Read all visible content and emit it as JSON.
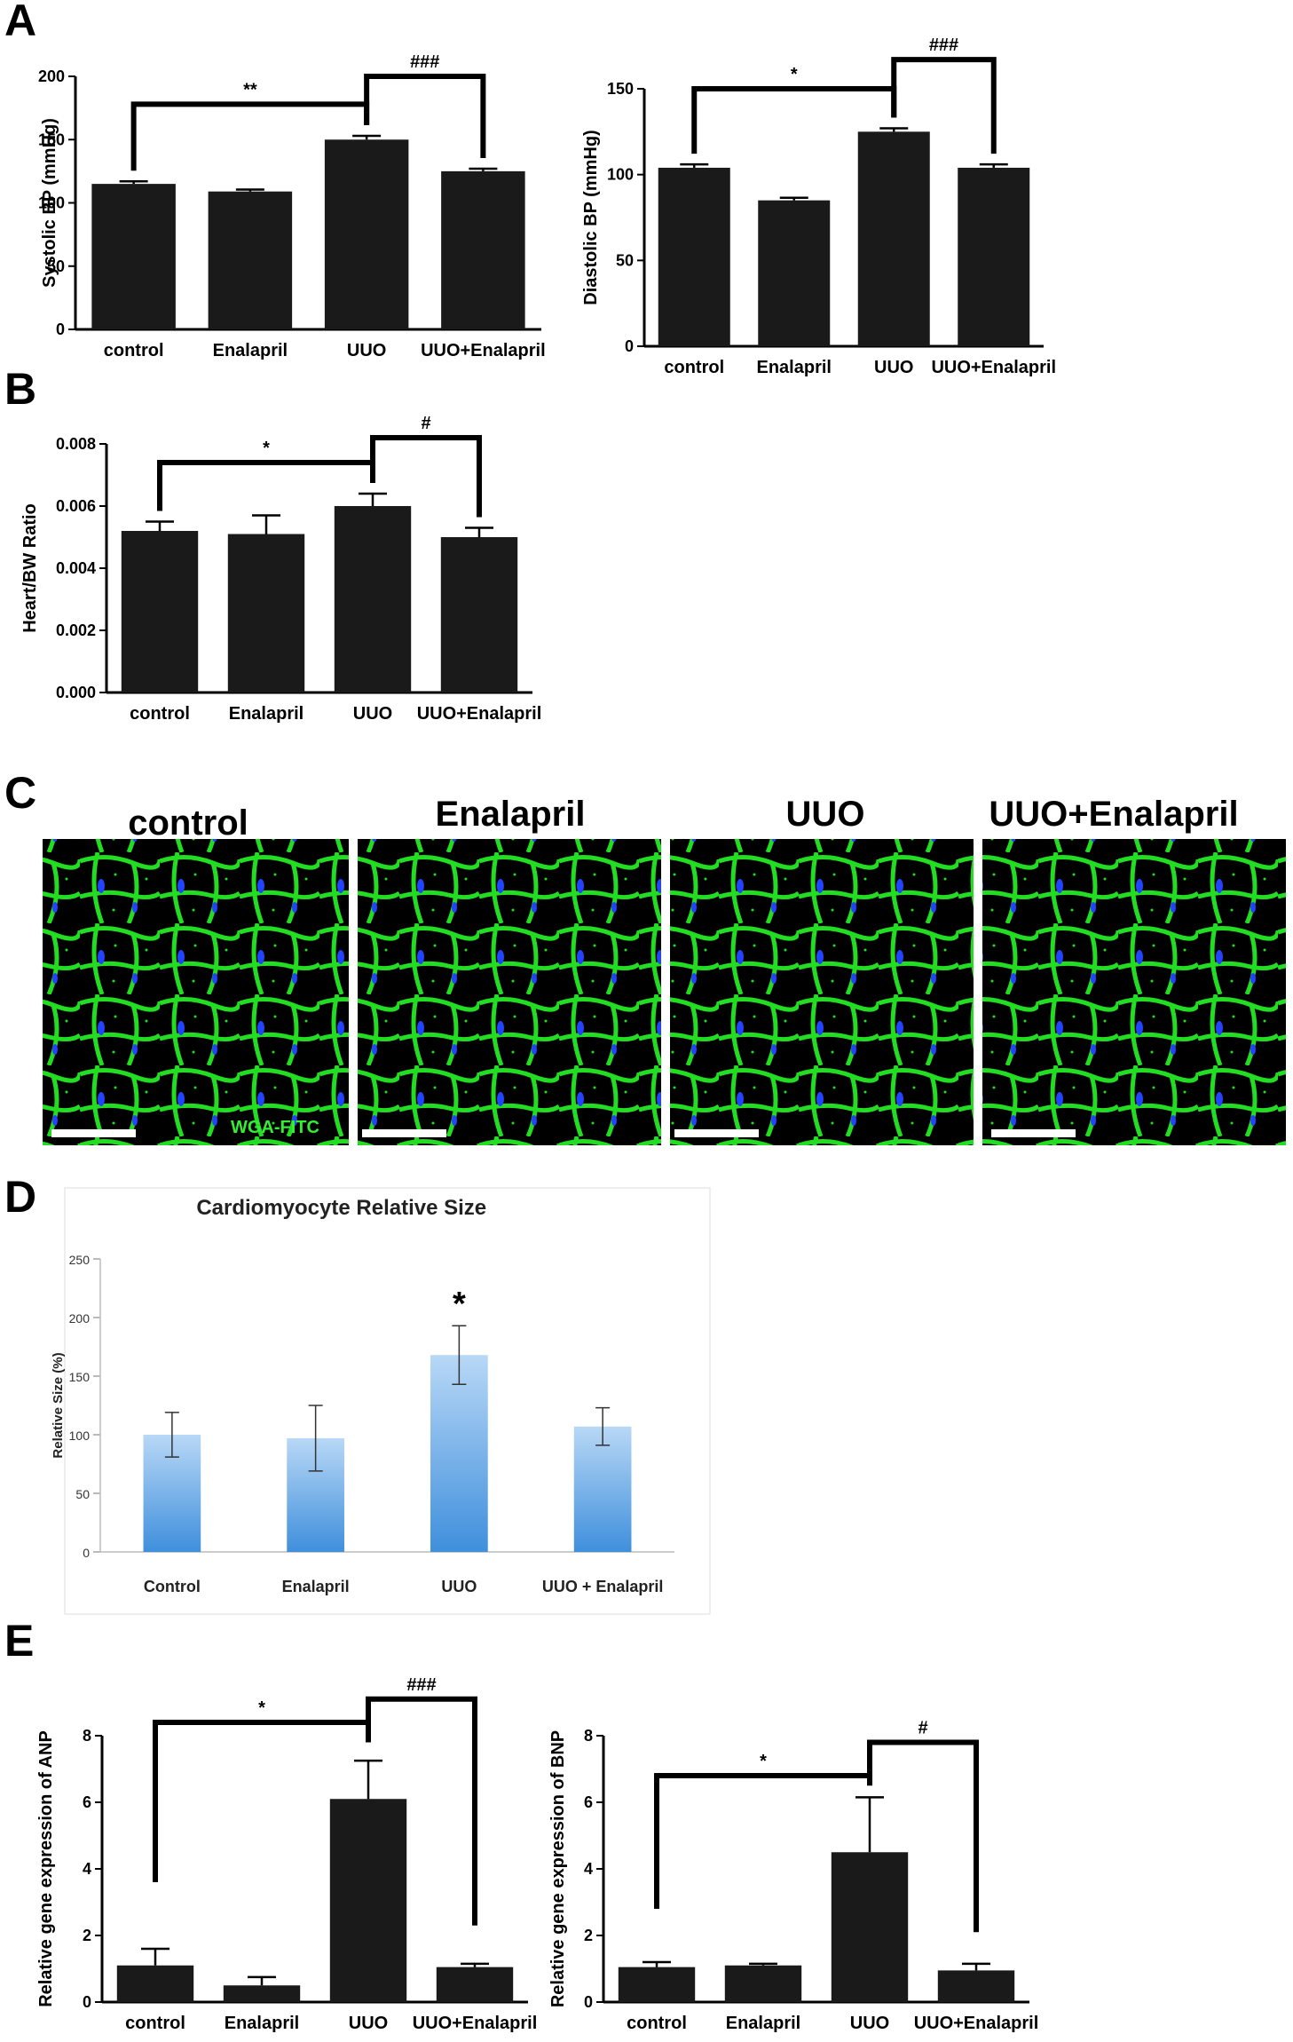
{
  "panels": {
    "A": "A",
    "B": "B",
    "C": "C",
    "D": "D",
    "E": "E"
  },
  "micrographs": {
    "titles": [
      "control",
      "Enalapril",
      "UUO",
      "UUO+Enalapril"
    ],
    "stain_label": "WGA-FITC",
    "colors": {
      "membrane": "#22dd22",
      "nuclei": "#2244ff",
      "background": "#000000"
    }
  },
  "chart_data": [
    {
      "id": "A1",
      "type": "bar",
      "categories": [
        "control",
        "Enalapril",
        "UUO",
        "UUO+Enalapril"
      ],
      "values": [
        115,
        109,
        150,
        125
      ],
      "errors": [
        2,
        1.5,
        3,
        2
      ],
      "ylabel": "Systolic BP (mmHg)",
      "ylim": [
        0,
        200
      ],
      "yticks": [
        0,
        50,
        100,
        150,
        200
      ],
      "tick_labels": [
        "0",
        "50",
        "100",
        "150",
        "200"
      ],
      "bar_color": "#1a1a1a",
      "annotations": [
        {
          "from": 0,
          "to": 2,
          "label": "**",
          "y": 178
        },
        {
          "from": 2,
          "to": 3,
          "label": "###",
          "y": 200
        }
      ]
    },
    {
      "id": "A2",
      "type": "bar",
      "categories": [
        "control",
        "Enalapril",
        "UUO",
        "UUO+Enalapril"
      ],
      "values": [
        104,
        85,
        125,
        104
      ],
      "errors": [
        2,
        1.5,
        2,
        2
      ],
      "ylabel": "Diastolic BP (mmHg)",
      "ylim": [
        0,
        150
      ],
      "yticks": [
        0,
        50,
        100,
        150
      ],
      "tick_labels": [
        "0",
        "50",
        "100",
        "150"
      ],
      "bar_color": "#1a1a1a",
      "annotations": [
        {
          "from": 0,
          "to": 2,
          "label": "*",
          "y": 150
        },
        {
          "from": 2,
          "to": 3,
          "label": "###",
          "y": 167
        }
      ]
    },
    {
      "id": "B",
      "type": "bar",
      "categories": [
        "control",
        "Enalapril",
        "UUO",
        "UUO+Enalapril"
      ],
      "values": [
        0.0052,
        0.0051,
        0.006,
        0.005
      ],
      "errors": [
        0.0003,
        0.0006,
        0.0004,
        0.0003
      ],
      "ylabel": "Heart/BW Ratio",
      "ylim": [
        0,
        0.008
      ],
      "yticks": [
        0,
        0.002,
        0.004,
        0.006,
        0.008
      ],
      "tick_labels": [
        "0.000",
        "0.002",
        "0.004",
        "0.006",
        "0.008"
      ],
      "bar_color": "#1a1a1a",
      "annotations": [
        {
          "from": 0,
          "to": 2,
          "label": "*",
          "y": 0.0074
        },
        {
          "from": 2,
          "to": 3,
          "label": "#",
          "y": 0.0082
        }
      ]
    },
    {
      "id": "D",
      "type": "bar",
      "title": "Cardiomyocyte Relative Size",
      "categories": [
        "Control",
        "Enalapril",
        "UUO",
        "UUO + Enalapril"
      ],
      "values": [
        100,
        97,
        168,
        107
      ],
      "errors": [
        19,
        28,
        25,
        16
      ],
      "ylabel": "Relative Size (%)",
      "ylim": [
        0,
        250
      ],
      "yticks": [
        0,
        50,
        100,
        150,
        200,
        250
      ],
      "tick_labels": [
        "0",
        "50",
        "100",
        "150",
        "200",
        "250"
      ],
      "bar_color_top": "#b8d8f6",
      "bar_color_bottom": "#3f8fdc",
      "star": {
        "index": 2,
        "label": "*"
      }
    },
    {
      "id": "E1",
      "type": "bar",
      "categories": [
        "control",
        "Enalapril",
        "UUO",
        "UUO+Enalapril"
      ],
      "values": [
        1.1,
        0.5,
        6.1,
        1.05
      ],
      "errors": [
        0.5,
        0.25,
        1.15,
        0.1
      ],
      "ylabel": "Relative gene expression of ANP",
      "ylim": [
        0,
        8
      ],
      "yticks": [
        0,
        2,
        4,
        6,
        8
      ],
      "tick_labels": [
        "0",
        "2",
        "4",
        "6",
        "8"
      ],
      "bar_color": "#1a1a1a",
      "annotations": [
        {
          "from": 0,
          "to": 2,
          "label": "*",
          "y": 8.4,
          "left_bottom": 3.6,
          "right_bottom": 7.8
        },
        {
          "from": 2,
          "to": 3,
          "label": "###",
          "y": 9.1,
          "left_bottom": 8.4,
          "right_bottom": 2.3
        }
      ]
    },
    {
      "id": "E2",
      "type": "bar",
      "categories": [
        "control",
        "Enalapril",
        "UUO",
        "UUO+Enalapril"
      ],
      "values": [
        1.05,
        1.1,
        4.5,
        0.95
      ],
      "errors": [
        0.15,
        0.05,
        1.65,
        0.2
      ],
      "ylabel": "Relative gene expression of BNP",
      "ylim": [
        0,
        8
      ],
      "yticks": [
        0,
        2,
        4,
        6,
        8
      ],
      "tick_labels": [
        "0",
        "2",
        "4",
        "6",
        "8"
      ],
      "bar_color": "#1a1a1a",
      "annotations": [
        {
          "from": 0,
          "to": 2,
          "label": "*",
          "y": 6.8,
          "left_bottom": 2.8,
          "right_bottom": 6.5
        },
        {
          "from": 2,
          "to": 3,
          "label": "#",
          "y": 7.8,
          "left_bottom": 6.8,
          "right_bottom": 2.1
        }
      ]
    }
  ]
}
